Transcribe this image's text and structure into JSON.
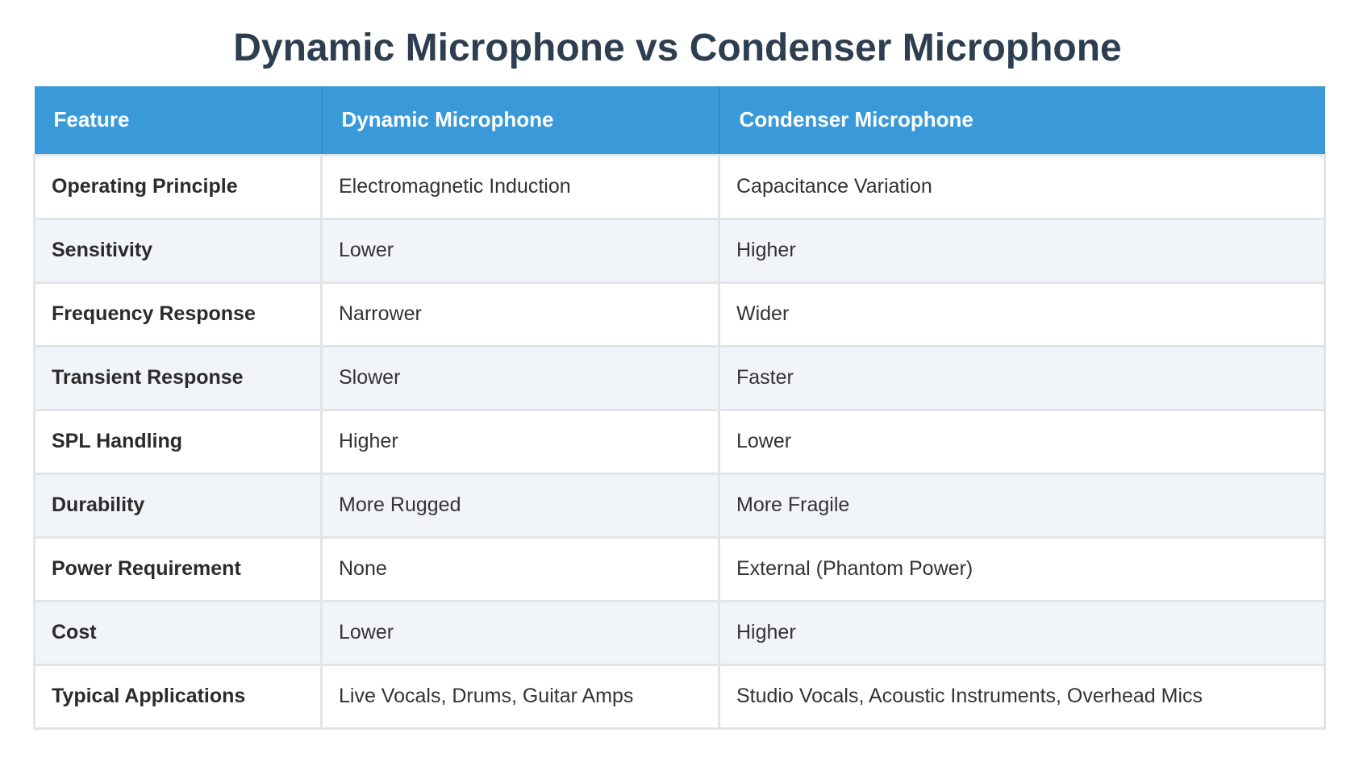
{
  "title": "Dynamic Microphone vs Condenser Microphone",
  "table": {
    "headers": [
      "Feature",
      "Dynamic Microphone",
      "Condenser Microphone"
    ],
    "rows": [
      [
        "Operating Principle",
        "Electromagnetic Induction",
        "Capacitance Variation"
      ],
      [
        "Sensitivity",
        "Lower",
        "Higher"
      ],
      [
        "Frequency Response",
        "Narrower",
        "Wider"
      ],
      [
        "Transient Response",
        "Slower",
        "Faster"
      ],
      [
        "SPL Handling",
        "Higher",
        "Lower"
      ],
      [
        "Durability",
        "More Rugged",
        "More Fragile"
      ],
      [
        "Power Requirement",
        "None",
        "External (Phantom Power)"
      ],
      [
        "Cost",
        "Lower",
        "Higher"
      ],
      [
        "Typical Applications",
        "Live Vocals, Drums, Guitar Amps",
        "Studio Vocals, Acoustic Instruments, Overhead Mics"
      ]
    ]
  },
  "colors": {
    "header_background": "#3a9ad9",
    "title_text": "#2c3e50",
    "stripe": "#f1f4f9"
  }
}
